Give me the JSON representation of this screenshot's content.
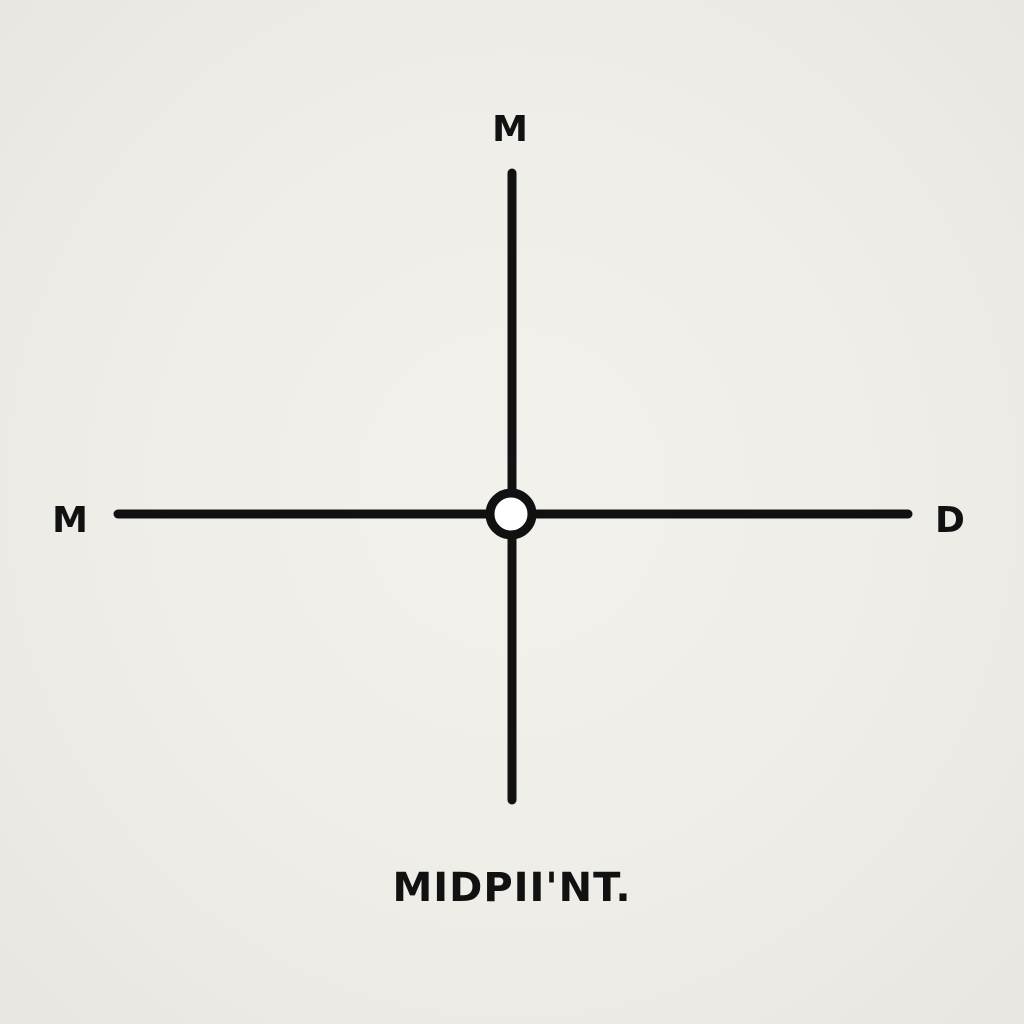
{
  "labels": {
    "top": "M",
    "left": "M",
    "right": "D",
    "caption": "MIDPII'NT."
  },
  "colors": {
    "ink": "#111111",
    "paper": "#f0eee8",
    "midpoint_fill": "#ffffff"
  }
}
